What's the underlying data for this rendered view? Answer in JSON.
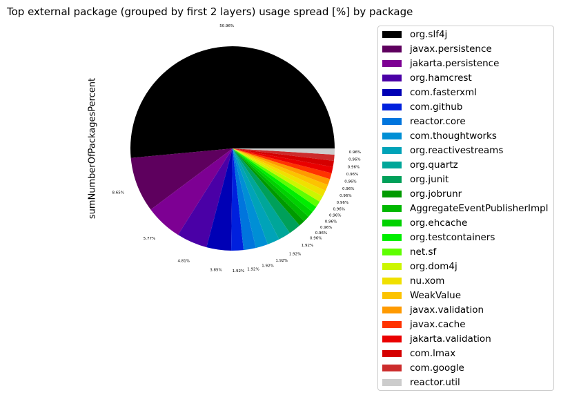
{
  "chart_data": {
    "type": "pie",
    "title": "Top external package (grouped by first 2 layers) usage spread [%] by package",
    "ylabel": "sumNumberOfPackagesPercent",
    "legend_position": "right",
    "slices": [
      {
        "label": "org.slf4j",
        "value": 50.96,
        "pct_label": "50.96%",
        "color": "#000000"
      },
      {
        "label": "javax.persistence",
        "value": 8.65,
        "pct_label": "8.65%",
        "color": "#5e005e"
      },
      {
        "label": "jakarta.persistence",
        "value": 5.77,
        "pct_label": "5.77%",
        "color": "#7d0093"
      },
      {
        "label": "org.hamcrest",
        "value": 4.81,
        "pct_label": "4.81%",
        "color": "#4a00a6"
      },
      {
        "label": "com.fasterxml",
        "value": 3.85,
        "pct_label": "3.85%",
        "color": "#0000b5"
      },
      {
        "label": "com.github",
        "value": 1.92,
        "pct_label": "1.92%",
        "color": "#0020dd"
      },
      {
        "label": "reactor.core",
        "value": 1.92,
        "pct_label": "1.92%",
        "color": "#0075dd"
      },
      {
        "label": "com.thoughtworks",
        "value": 1.92,
        "pct_label": "1.92%",
        "color": "#008fd5"
      },
      {
        "label": "org.reactivestreams",
        "value": 1.92,
        "pct_label": "1.92%",
        "color": "#00a3b8"
      },
      {
        "label": "org.quartz",
        "value": 1.92,
        "pct_label": "1.92%",
        "color": "#00a699"
      },
      {
        "label": "org.junit",
        "value": 1.92,
        "pct_label": "1.92%",
        "color": "#00a05a"
      },
      {
        "label": "org.jobrunr",
        "value": 0.96,
        "pct_label": "0.96%",
        "color": "#009a00"
      },
      {
        "label": "AggregateEventPublisherImpl",
        "value": 0.96,
        "pct_label": "0.96%",
        "color": "#00b800"
      },
      {
        "label": "org.ehcache",
        "value": 0.96,
        "pct_label": "0.96%",
        "color": "#00d200"
      },
      {
        "label": "org.testcontainers",
        "value": 0.96,
        "pct_label": "0.96%",
        "color": "#00ee00"
      },
      {
        "label": "net.sf",
        "value": 0.96,
        "pct_label": "0.96%",
        "color": "#5eff00"
      },
      {
        "label": "org.dom4j",
        "value": 0.96,
        "pct_label": "0.96%",
        "color": "#ccf600"
      },
      {
        "label": "nu.xom",
        "value": 0.96,
        "pct_label": "0.96%",
        "color": "#f0e000"
      },
      {
        "label": "WeakValue",
        "value": 0.96,
        "pct_label": "0.96%",
        "color": "#fcc300"
      },
      {
        "label": "javax.validation",
        "value": 0.96,
        "pct_label": "0.96%",
        "color": "#ff9a00"
      },
      {
        "label": "javax.cache",
        "value": 0.96,
        "pct_label": "0.96%",
        "color": "#ff3300"
      },
      {
        "label": "jakarta.validation",
        "value": 0.96,
        "pct_label": "0.96%",
        "color": "#ea0000"
      },
      {
        "label": "com.lmax",
        "value": 0.96,
        "pct_label": "0.96%",
        "color": "#d50000"
      },
      {
        "label": "com.google",
        "value": 0.96,
        "pct_label": "0.96%",
        "color": "#cc2c2c"
      },
      {
        "label": "reactor.util",
        "value": 0.96,
        "pct_label": "0.96%",
        "color": "#cccccc"
      }
    ]
  }
}
